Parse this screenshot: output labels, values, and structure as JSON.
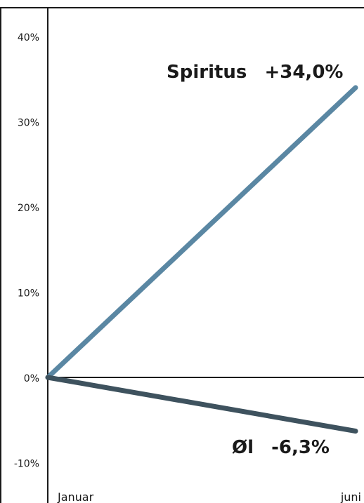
{
  "chart_data": {
    "type": "line",
    "title": "",
    "xlabel": "",
    "ylabel": "",
    "categories": [
      "Januar",
      "juni"
    ],
    "ylim": [
      -14,
      44
    ],
    "yticks": [
      {
        "value": 40,
        "label": "40%"
      },
      {
        "value": 30,
        "label": "30%"
      },
      {
        "value": 20,
        "label": "20%"
      },
      {
        "value": 10,
        "label": "10%"
      },
      {
        "value": 0,
        "label": "0%"
      },
      {
        "value": -10,
        "label": "-10%"
      }
    ],
    "grid": false,
    "series": [
      {
        "name": "Spiritus",
        "change_label": "+34,0%",
        "color": "#5a87a3",
        "values": [
          0,
          34.0
        ]
      },
      {
        "name": "Øl",
        "change_label": "-6,3%",
        "color": "#3e525e",
        "values": [
          0,
          -6.3
        ]
      }
    ]
  }
}
